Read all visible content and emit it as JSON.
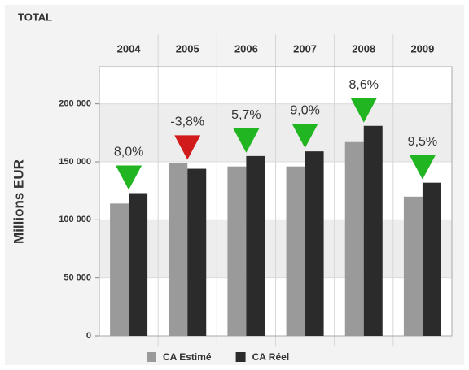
{
  "chart_data": {
    "type": "bar",
    "title": "TOTAL",
    "ylabel": "Millions EUR",
    "categories": [
      "2004",
      "2005",
      "2006",
      "2007",
      "2008",
      "2009"
    ],
    "series": [
      {
        "name": "CA Estimé",
        "color": "#9a9a9a",
        "values": [
          114000,
          149000,
          146000,
          146000,
          167000,
          120000
        ]
      },
      {
        "name": "CA Réel",
        "color": "#2b2b2b",
        "values": [
          123000,
          144000,
          155000,
          159000,
          181000,
          132000
        ]
      }
    ],
    "annotations": [
      {
        "label": "8,0%",
        "color": "#22b522"
      },
      {
        "label": "-3,8%",
        "color": "#d11a1a"
      },
      {
        "label": "5,7%",
        "color": "#22b522"
      },
      {
        "label": "9,0%",
        "color": "#22b522"
      },
      {
        "label": "8,6%",
        "color": "#22b522"
      },
      {
        "label": "9,5%",
        "color": "#22b522"
      }
    ],
    "ylim": [
      0,
      232000
    ],
    "yticks": [
      0,
      {
        "value": 50000,
        "label": "50 000"
      },
      {
        "value": 100000,
        "label": "100 000"
      },
      {
        "value": 150000,
        "label": "150 000"
      },
      {
        "value": 200000,
        "label": "200 000"
      }
    ],
    "grid": true,
    "legend": "bottom"
  }
}
